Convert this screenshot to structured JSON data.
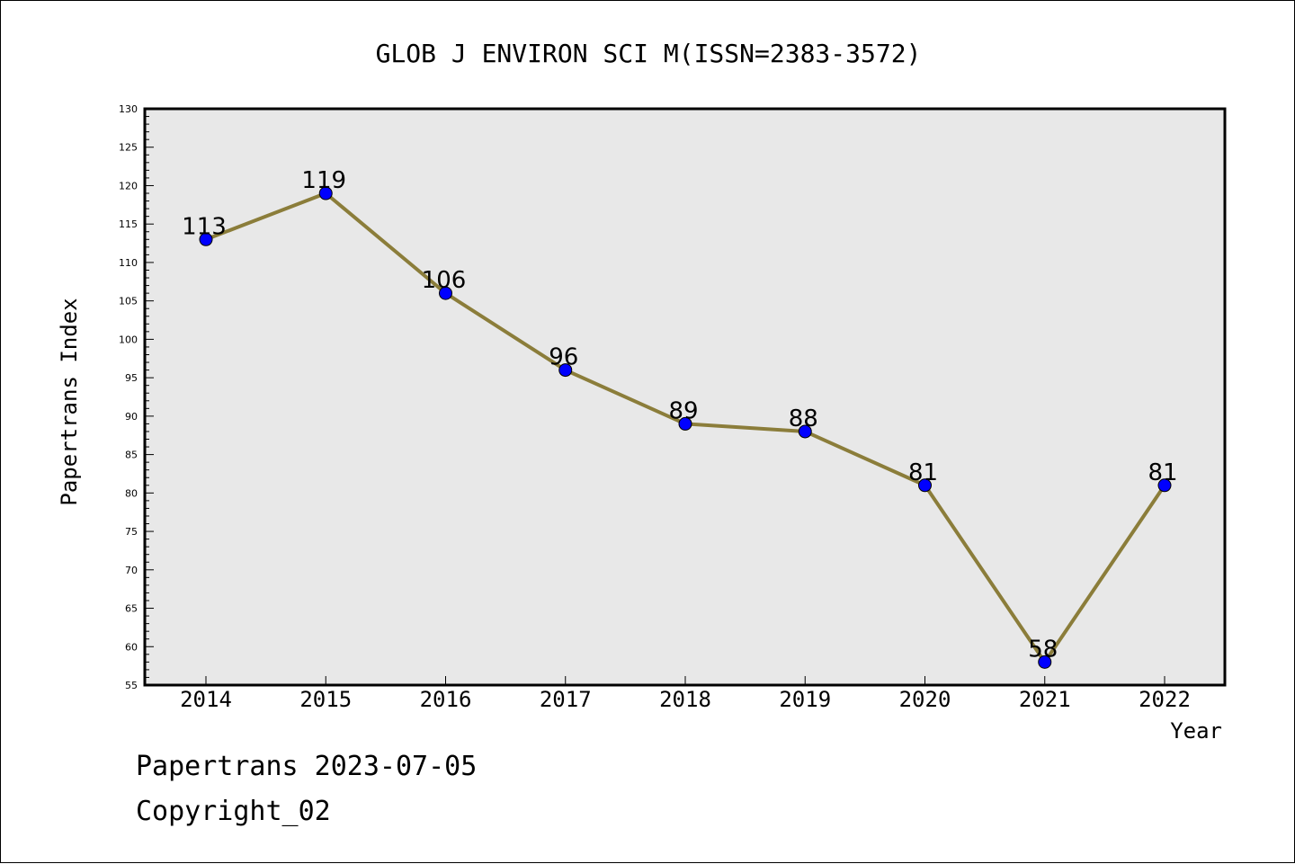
{
  "chart_data": {
    "type": "line",
    "title": "GLOB J ENVIRON SCI M(ISSN=2383-3572)",
    "xlabel": "Year",
    "ylabel": "Papertrans Index",
    "categories": [
      "2014",
      "2015",
      "2016",
      "2017",
      "2018",
      "2019",
      "2020",
      "2021",
      "2022"
    ],
    "series": [
      {
        "values": [
          113,
          119,
          106,
          96,
          89,
          88,
          81,
          58,
          81
        ]
      }
    ],
    "data_labels": [
      "113",
      "119",
      "106",
      "96",
      "89",
      "88",
      "81",
      "58",
      "81"
    ],
    "ylim": [
      55,
      130
    ],
    "yticks": [
      "55",
      "60",
      "65",
      "70",
      "75",
      "80",
      "85",
      "90",
      "95",
      "100",
      "105",
      "110",
      "115",
      "120",
      "125",
      "130"
    ],
    "grid": false,
    "legend": "none",
    "colors": {
      "line": "#8b7d3a",
      "marker": "#0000ff",
      "plot_background": "#e8e8e8"
    }
  },
  "footer": {
    "date_line": "Papertrans 2023-07-05",
    "copyright_line": "Copyright_02"
  }
}
